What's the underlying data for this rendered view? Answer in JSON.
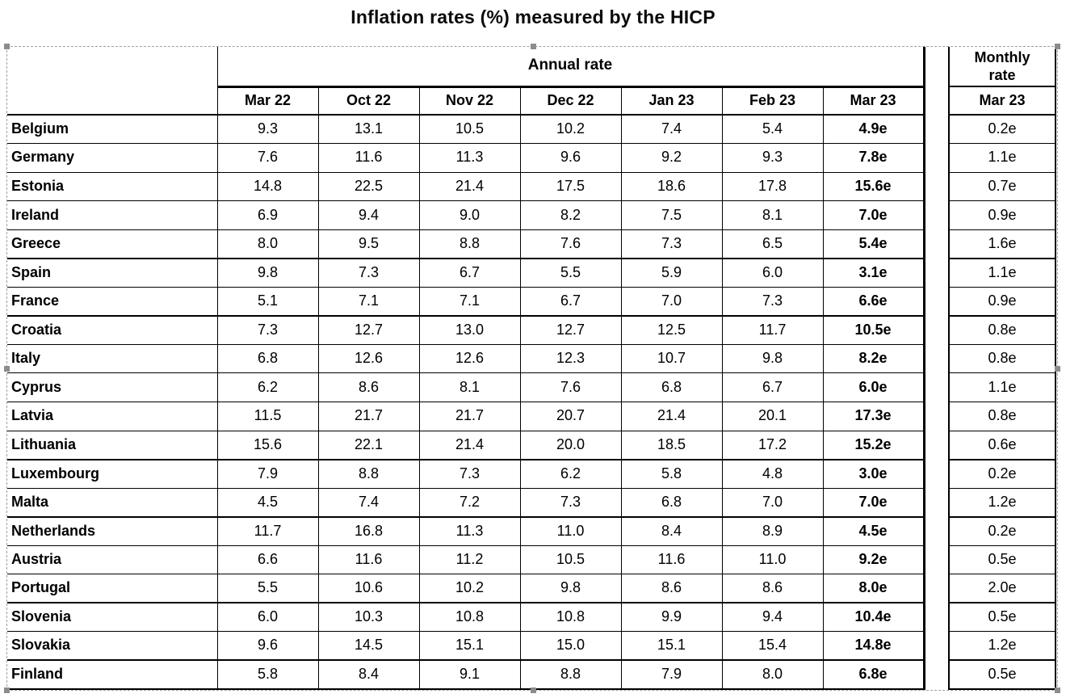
{
  "title": "Inflation rates (%) measured by the HICP",
  "chart_data": {
    "type": "table",
    "title": "Inflation rates (%) measured by the HICP",
    "unit": "%",
    "column_groups": [
      {
        "label": "Annual rate",
        "columns": [
          "Mar 22",
          "Oct 22",
          "Nov 22",
          "Dec 22",
          "Jan 23",
          "Feb 23",
          "Mar 23"
        ]
      },
      {
        "label": "Monthly rate",
        "columns": [
          "Mar 23"
        ]
      }
    ],
    "rows": [
      {
        "country": "Belgium",
        "annual": [
          "9.3",
          "13.1",
          "10.5",
          "10.2",
          "7.4",
          "5.4",
          "4.9e"
        ],
        "monthly": "0.2e"
      },
      {
        "country": "Germany",
        "annual": [
          "7.6",
          "11.6",
          "11.3",
          "9.6",
          "9.2",
          "9.3",
          "7.8e"
        ],
        "monthly": "1.1e"
      },
      {
        "country": "Estonia",
        "annual": [
          "14.8",
          "22.5",
          "21.4",
          "17.5",
          "18.6",
          "17.8",
          "15.6e"
        ],
        "monthly": "0.7e"
      },
      {
        "country": "Ireland",
        "annual": [
          "6.9",
          "9.4",
          "9.0",
          "8.2",
          "7.5",
          "8.1",
          "7.0e"
        ],
        "monthly": "0.9e"
      },
      {
        "country": "Greece",
        "annual": [
          "8.0",
          "9.5",
          "8.8",
          "7.6",
          "7.3",
          "6.5",
          "5.4e"
        ],
        "monthly": "1.6e"
      },
      {
        "country": "Spain",
        "annual": [
          "9.8",
          "7.3",
          "6.7",
          "5.5",
          "5.9",
          "6.0",
          "3.1e"
        ],
        "monthly": "1.1e"
      },
      {
        "country": "France",
        "annual": [
          "5.1",
          "7.1",
          "7.1",
          "6.7",
          "7.0",
          "7.3",
          "6.6e"
        ],
        "monthly": "0.9e"
      },
      {
        "country": "Croatia",
        "annual": [
          "7.3",
          "12.7",
          "13.0",
          "12.7",
          "12.5",
          "11.7",
          "10.5e"
        ],
        "monthly": "0.8e"
      },
      {
        "country": "Italy",
        "annual": [
          "6.8",
          "12.6",
          "12.6",
          "12.3",
          "10.7",
          "9.8",
          "8.2e"
        ],
        "monthly": "0.8e"
      },
      {
        "country": "Cyprus",
        "annual": [
          "6.2",
          "8.6",
          "8.1",
          "7.6",
          "6.8",
          "6.7",
          "6.0e"
        ],
        "monthly": "1.1e"
      },
      {
        "country": "Latvia",
        "annual": [
          "11.5",
          "21.7",
          "21.7",
          "20.7",
          "21.4",
          "20.1",
          "17.3e"
        ],
        "monthly": "0.8e"
      },
      {
        "country": "Lithuania",
        "annual": [
          "15.6",
          "22.1",
          "21.4",
          "20.0",
          "18.5",
          "17.2",
          "15.2e"
        ],
        "monthly": "0.6e"
      },
      {
        "country": "Luxembourg",
        "annual": [
          "7.9",
          "8.8",
          "7.3",
          "6.2",
          "5.8",
          "4.8",
          "3.0e"
        ],
        "monthly": "0.2e"
      },
      {
        "country": "Malta",
        "annual": [
          "4.5",
          "7.4",
          "7.2",
          "7.3",
          "6.8",
          "7.0",
          "7.0e"
        ],
        "monthly": "1.2e"
      },
      {
        "country": "Netherlands",
        "annual": [
          "11.7",
          "16.8",
          "11.3",
          "11.0",
          "8.4",
          "8.9",
          "4.5e"
        ],
        "monthly": "0.2e"
      },
      {
        "country": "Austria",
        "annual": [
          "6.6",
          "11.6",
          "11.2",
          "10.5",
          "11.6",
          "11.0",
          "9.2e"
        ],
        "monthly": "0.5e"
      },
      {
        "country": "Portugal",
        "annual": [
          "5.5",
          "10.6",
          "10.2",
          "9.8",
          "8.6",
          "8.6",
          "8.0e"
        ],
        "monthly": "2.0e"
      },
      {
        "country": "Slovenia",
        "annual": [
          "6.0",
          "10.3",
          "10.8",
          "10.8",
          "9.9",
          "9.4",
          "10.4e"
        ],
        "monthly": "0.5e"
      },
      {
        "country": "Slovakia",
        "annual": [
          "9.6",
          "14.5",
          "15.1",
          "15.0",
          "15.1",
          "15.4",
          "14.8e"
        ],
        "monthly": "1.2e"
      },
      {
        "country": "Finland",
        "annual": [
          "5.8",
          "8.4",
          "9.1",
          "8.8",
          "7.9",
          "8.0",
          "6.8e"
        ],
        "monthly": "0.5e"
      }
    ]
  },
  "colors": {
    "grid": "#000000",
    "text": "#000000",
    "background": "#ffffff",
    "selection_dash": "#9e9e9e",
    "selection_handle": "#8c8c8c"
  }
}
